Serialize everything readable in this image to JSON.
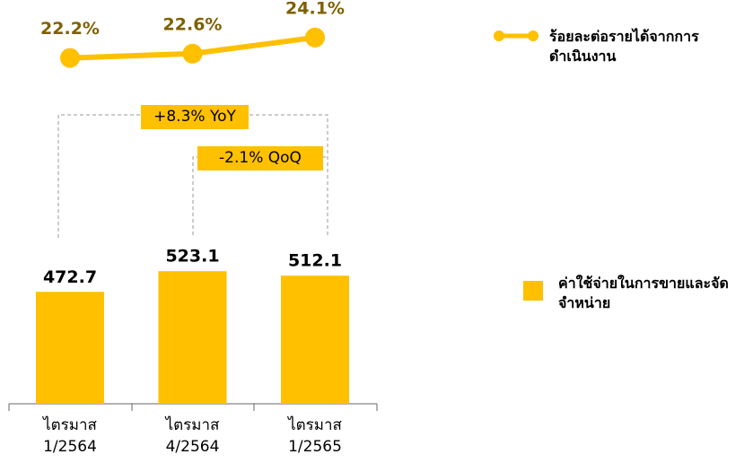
{
  "chart_data": {
    "type": "bar",
    "categories": [
      "ไตรมาส 1/2564",
      "ไตรมาส 4/2564",
      "ไตรมาส 1/2565"
    ],
    "series": [
      {
        "name": "ค่าใช้จ่ายในการขายและจัดจำหน่าย",
        "color": "#FFC000",
        "type": "bar",
        "values": [
          472.7,
          523.1,
          512.1
        ]
      },
      {
        "name": "ร้อยละต่อรายได้จากการดำเนินงาน",
        "color": "#FFC000",
        "type": "line",
        "axis": "y2",
        "values": [
          22.2,
          22.6,
          24.1
        ],
        "value_labels": [
          "22.2%",
          "22.6%",
          "24.1%"
        ]
      }
    ],
    "ylim": [
      200,
      1140
    ],
    "y2lim": [
      18,
      28
    ],
    "annotations": [
      "+8.3% YoY",
      "-2.1% QoQ"
    ]
  }
}
